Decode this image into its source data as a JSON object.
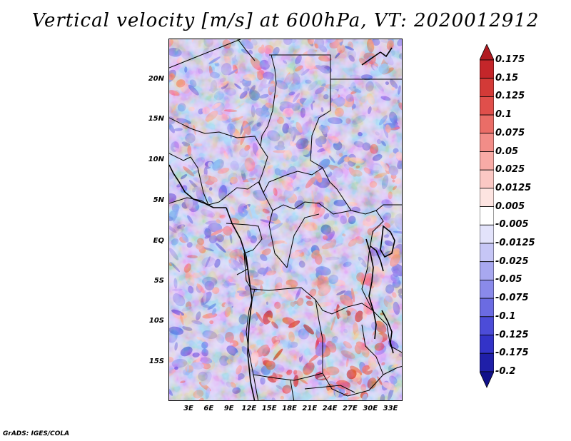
{
  "title": "Vertical velocity [m/s] at 600hPa, VT: 2020012912",
  "credit": "GrADS: IGES/COLA",
  "map": {
    "lat_labels": [
      "20N",
      "15N",
      "10N",
      "5N",
      "EQ",
      "5S",
      "10S",
      "15S"
    ],
    "lon_labels": [
      "3E",
      "6E",
      "9E",
      "12E",
      "15E",
      "18E",
      "21E",
      "24E",
      "27E",
      "30E",
      "33E"
    ]
  },
  "colorbar": {
    "labels": [
      "0.175",
      "0.15",
      "0.125",
      "0.1",
      "0.075",
      "0.05",
      "0.025",
      "0.0125",
      "0.005",
      "-0.005",
      "-0.0125",
      "-0.025",
      "-0.05",
      "-0.075",
      "-0.1",
      "-0.125",
      "-0.175",
      "-0.2"
    ],
    "colors": [
      "#b01a20",
      "#c4262a",
      "#d33a37",
      "#e04f4b",
      "#ea6d67",
      "#f28d88",
      "#f8aba6",
      "#fbc8c4",
      "#fde4e1",
      "#ffffff",
      "#e3e3fb",
      "#c6c6f6",
      "#a8a8f0",
      "#8a8aea",
      "#6b6be2",
      "#4c4cd8",
      "#3333c8",
      "#1f1fa8",
      "#10108a"
    ]
  }
}
